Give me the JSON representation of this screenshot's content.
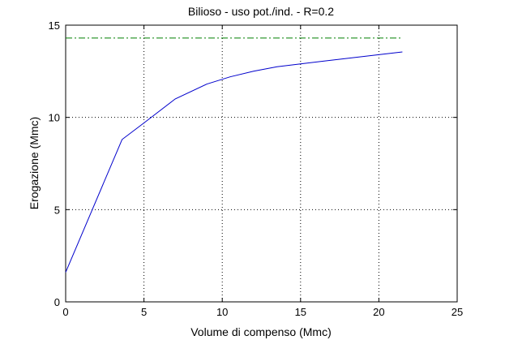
{
  "chart_data": {
    "type": "line",
    "title": "Bilioso  -  uso pot./ind.  -   R=0.2",
    "xlabel": "Volume di compenso (Mmc)",
    "ylabel": "Erogazione (Mmc)",
    "xlim": [
      0,
      25
    ],
    "ylim": [
      0,
      15
    ],
    "xticks": [
      0,
      5,
      10,
      15,
      20,
      25
    ],
    "yticks": [
      0,
      5,
      10,
      15
    ],
    "grid": true,
    "grid_style": "dotted",
    "legend": "none",
    "series": [
      {
        "color": "#0000cc",
        "line_style": "solid",
        "x": [
          0,
          3.6,
          5.0,
          7.0,
          9.0,
          10.5,
          12.0,
          13.5,
          15.0,
          16.5,
          18.0,
          19.5,
          21.0,
          21.5
        ],
        "y": [
          1.6,
          8.8,
          9.7,
          11.0,
          11.8,
          12.2,
          12.5,
          12.75,
          12.9,
          13.05,
          13.2,
          13.35,
          13.5,
          13.55
        ]
      },
      {
        "color": "#007f00",
        "line_style": "dash-dot",
        "x": [
          0,
          21.5
        ],
        "y": [
          14.3,
          14.3
        ]
      }
    ]
  }
}
